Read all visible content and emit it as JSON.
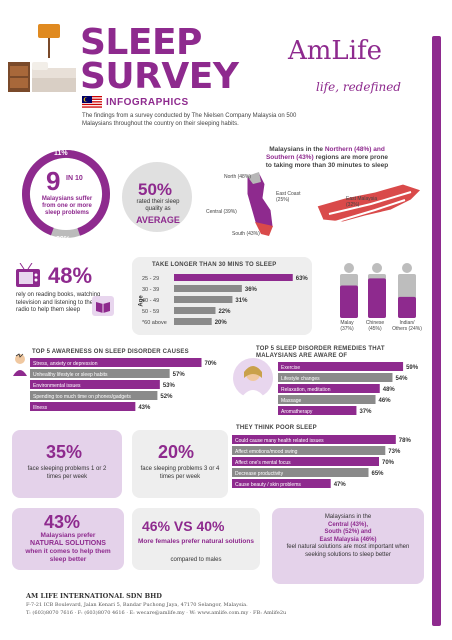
{
  "header": {
    "title_line1": "SLEEP",
    "title_line2": "SURVEY",
    "subtitle": "INFOGRAPHICS",
    "intro": "The findings from a survey conducted by The Nielsen Company Malaysia on 500 Malaysians throughout the country on their sleeping habits.",
    "brand": "AmLife",
    "tagline": "life, redefined"
  },
  "hero": {
    "top_pct": "11%",
    "nine": "9",
    "in_ten": "IN 10",
    "nine_text": "Malaysians suffer from one or more sleep problems",
    "bottom_pct": "89%",
    "avg_pct": "50%",
    "avg_text1": "rated their sleep quality as",
    "avg_text2": "AVERAGE"
  },
  "map": {
    "headline1": "Malaysians in the",
    "headline_hl": "Northern (48%) and Southern (43%)",
    "headline2": "regions are more prone to taking more than 30 minutes to sleep",
    "labels": {
      "north": "North (48%)",
      "central": "Central (39%)",
      "south": "South (43%)",
      "east_coast": "East Coast (25%)",
      "east_malaysia": "East Malaysia (32%)"
    }
  },
  "reading": {
    "pct": "48%",
    "text": "rely on reading books, watching television and listening to the radio to help them sleep"
  },
  "age_chart": {
    "title": "TAKE LONGER THAN 30 MINS TO SLEEP",
    "axis_label": "Age"
  },
  "ethnic_chart": {
    "labels": [
      "Malay (37%)",
      "Chinese (45%)",
      "Indian/ Others (24%)"
    ]
  },
  "awareness": {
    "title": "TOP 5 AWARENESS ON SLEEP DISORDER CAUSES"
  },
  "remedies": {
    "title": "TOP 5 SLEEP DISORDER REMEDIES THAT MALAYSIANS ARE AWARE OF"
  },
  "poor_sleep": {
    "title": "THEY THINK POOR SLEEP"
  },
  "face_problems": {
    "a_pct": "35%",
    "a_text": "face sleeping problems 1 or 2 times per week",
    "b_pct": "20%",
    "b_text": "face sleeping problems 3 or 4 times per week"
  },
  "bottom": {
    "natural_pct": "43%",
    "natural_text1": "Malaysians prefer",
    "natural_hl": "NATURAL SOLUTIONS",
    "natural_text2": "when it comes to help them sleep better",
    "gender_head": "46% VS 40%",
    "gender_text1": "More females prefer natural solutions",
    "gender_text2": "compared to males",
    "region_line1": "Malaysians in the",
    "region_line2": "Central (43%),",
    "region_line3": "South (52%) and",
    "region_line4": "East Malaysia (46%)",
    "region_line5": "feel natural solutions are most important when seeking solutions to sleep better"
  },
  "footer": {
    "company": "AM LIFE INTERNATIONAL SDN BHD",
    "address": "F-7-21 ICB Boulevard, Jalan Kenari 5, Bandar Puchong Jaya, 47170 Selangor, Malaysia.",
    "contact": "T: (603)8070 7616 · F: (603)8070 4616 · E: wecare@amlife.my · W: www.amlife.com.my · FB: Amlife2u"
  },
  "chart_data": [
    {
      "type": "bar",
      "title": "TAKE LONGER THAN 30 MINS TO SLEEP",
      "ylabel": "Age",
      "categories": [
        "25 - 29",
        "30 - 39",
        "40 - 49",
        "50 - 59",
        "*60 above"
      ],
      "values": [
        63,
        36,
        31,
        22,
        20
      ],
      "unit": "%"
    },
    {
      "type": "bar",
      "categories": [
        "Malay (37%)",
        "Chinese (45%)",
        "Indian/ Others (24%)"
      ],
      "values": [
        37,
        45,
        24
      ],
      "unit": "%"
    },
    {
      "type": "bar",
      "title": "TOP 5 AWARENESS ON SLEEP DISORDER CAUSES",
      "categories": [
        "Stress, anxiety or depression",
        "Unhealthy lifestyle or sleep habits",
        "Environmental issues",
        "Spending too much time on phones/gadgets",
        "Illness"
      ],
      "values": [
        70,
        57,
        53,
        52,
        43
      ],
      "unit": "%"
    },
    {
      "type": "bar",
      "title": "TOP 5 SLEEP DISORDER REMEDIES THAT MALAYSIANS ARE AWARE OF",
      "categories": [
        "Exercise",
        "Lifestyle changes",
        "Relaxation, meditation",
        "Massage",
        "Aromatherapy"
      ],
      "values": [
        59,
        54,
        48,
        46,
        37
      ],
      "unit": "%"
    },
    {
      "type": "bar",
      "title": "THEY THINK POOR SLEEP",
      "categories": [
        "Could cause many health related issues",
        "Affect emotions/mood swing",
        "Affect one's mental focus",
        "Decrease productivity",
        "Cause beauty / skin problems"
      ],
      "values": [
        78,
        73,
        70,
        65,
        47
      ],
      "unit": "%"
    }
  ],
  "colors": {
    "purple": "#8e2a8e",
    "grey": "#8a8a8a",
    "lavender": "#e4d2ea",
    "panel": "#eeeeee"
  }
}
